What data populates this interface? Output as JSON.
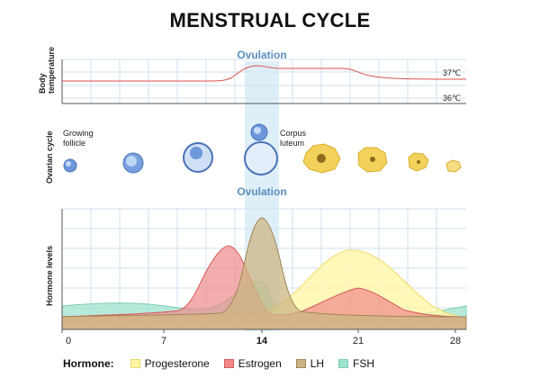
{
  "title": "MENSTRUAL CYCLE",
  "ovulation_top": "Ovulation",
  "ovulation_mid": "Ovulation",
  "temperature": {
    "axis_label": "Body temperature",
    "label_high": "37℃",
    "label_low": "36℃"
  },
  "ovarian": {
    "axis_label": "Ovarian cycle",
    "growing_follicle": [
      "Growing",
      "follicle"
    ],
    "corpus_luteum": [
      "Corpus",
      "luteum"
    ]
  },
  "hormones": {
    "axis_label": "Hormone levels",
    "days": [
      "0",
      "7",
      "14",
      "21",
      "28"
    ],
    "highlight_day": "14"
  },
  "legend": {
    "title": "Hormone:",
    "items": [
      {
        "label": "Progesterone",
        "color": "#fff6a8"
      },
      {
        "label": "Estrogen",
        "color": "#f08a8a"
      },
      {
        "label": "LH",
        "color": "#cdb583"
      },
      {
        "label": "FSH",
        "color": "#9fe3cf"
      }
    ]
  },
  "colors": {
    "ovulation_band": "#d9ecf7",
    "temperature_line": "#d9534f",
    "grid": "#cfe0ee",
    "follicle": "#6e97dc",
    "corpus": "#f3d25b"
  }
}
